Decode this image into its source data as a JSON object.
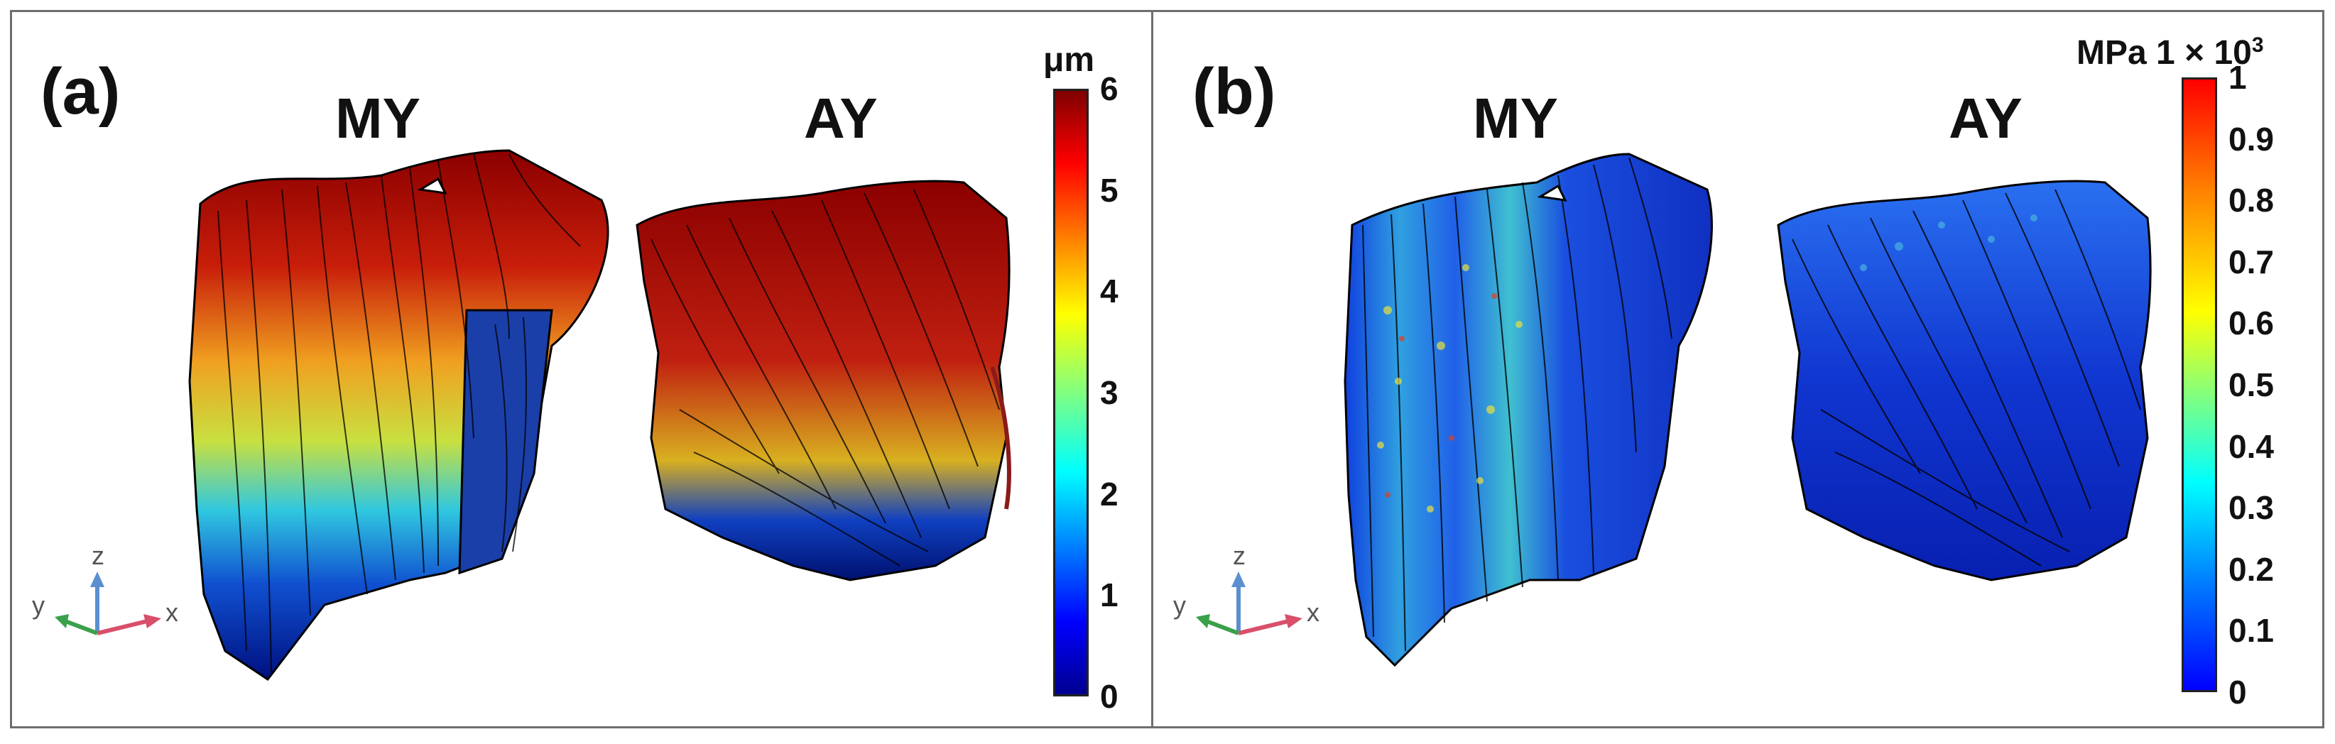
{
  "panel_a": {
    "label": "(a)",
    "titles": {
      "left": "MY",
      "right": "AY"
    },
    "colorbar": {
      "unit": "μm",
      "ticks": [
        "6",
        "5",
        "4",
        "3",
        "2",
        "1",
        "0"
      ],
      "min": 0,
      "max": 6,
      "colors": {
        "top": "#7f0000",
        "mid": "#80ff80",
        "bottom": "#00008f"
      }
    },
    "axes": {
      "x": "x",
      "y": "y",
      "z": "z"
    }
  },
  "panel_b": {
    "label": "(b)",
    "titles": {
      "left": "MY",
      "right": "AY"
    },
    "colorbar": {
      "unit": "MPa",
      "multiplier": "1 × 10",
      "exponent": "3",
      "ticks": [
        "1",
        "0.9",
        "0.8",
        "0.7",
        "0.6",
        "0.5",
        "0.4",
        "0.3",
        "0.2",
        "0.1",
        "0"
      ],
      "min": 0,
      "max": 1,
      "colors": {
        "top": "#ff0000",
        "mid": "#80ff80",
        "bottom": "#0000ff"
      }
    },
    "axes": {
      "x": "x",
      "y": "y",
      "z": "z"
    }
  },
  "colors": {
    "frame": "#6e6e6e",
    "axis_x": "#d94f6a",
    "axis_y": "#3aa04a",
    "axis_z": "#5b8fd0",
    "fiber_outline": "#000000"
  }
}
